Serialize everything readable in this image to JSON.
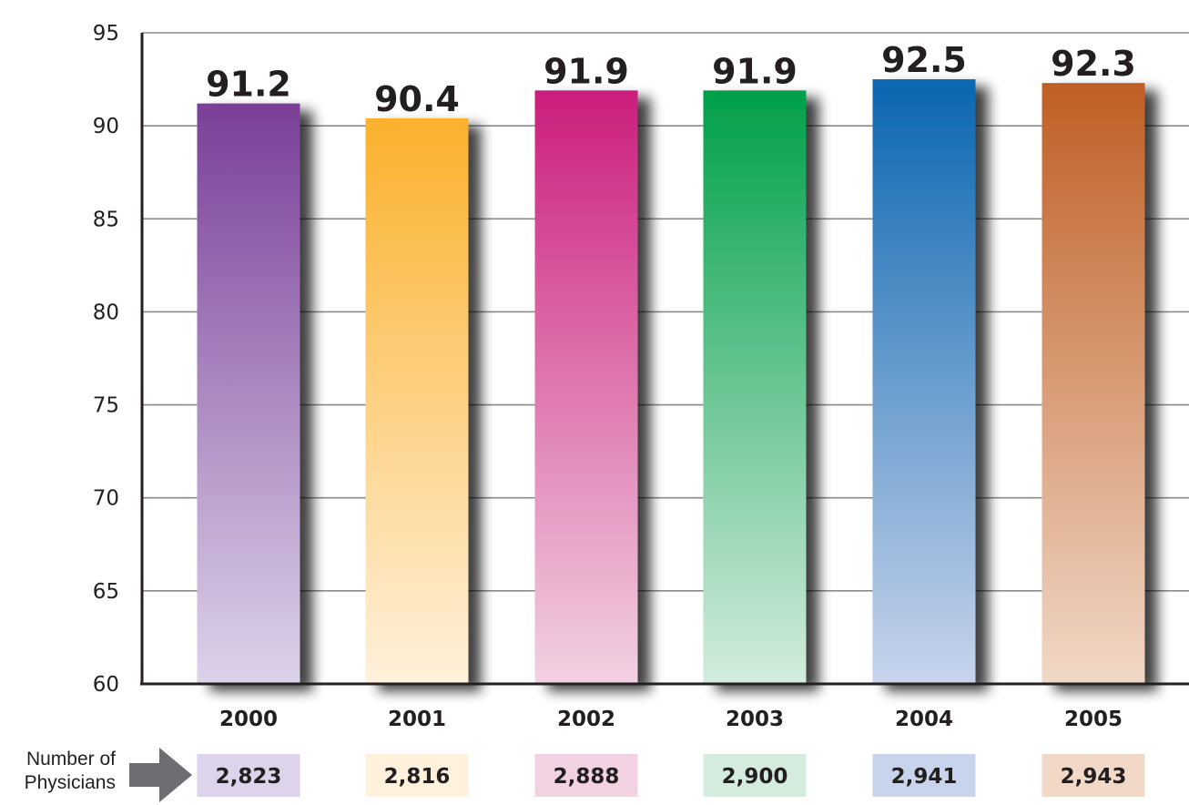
{
  "chart_data": {
    "type": "bar",
    "categories": [
      "2000",
      "2001",
      "2002",
      "2003",
      "2004",
      "2005"
    ],
    "values": [
      91.2,
      90.4,
      91.9,
      91.9,
      92.5,
      92.3
    ],
    "data_labels": [
      "91.2",
      "90.4",
      "91.9",
      "91.9",
      "92.5",
      "92.3"
    ],
    "ylim": [
      60,
      95
    ],
    "yticks": [
      60,
      65,
      70,
      75,
      80,
      85,
      90,
      95
    ],
    "grid": true,
    "title": "",
    "xlabel": "",
    "ylabel": "",
    "bar_colors": [
      {
        "top": "#7a3f98",
        "bottom": "#ddd3ea"
      },
      {
        "top": "#fbb12b",
        "bottom": "#fff1dc"
      },
      {
        "top": "#cb1e7c",
        "bottom": "#f2d2e2"
      },
      {
        "top": "#00a04a",
        "bottom": "#d3ecdd"
      },
      {
        "top": "#0a66b0",
        "bottom": "#c8d4ec"
      },
      {
        "top": "#bf5f25",
        "bottom": "#f1d8c7"
      }
    ]
  },
  "physicians": {
    "label_line1": "Number of",
    "label_line2": "Physicians",
    "arrow_icon": "right-arrow-icon",
    "counts": [
      "2,823",
      "2,816",
      "2,888",
      "2,900",
      "2,941",
      "2,943"
    ],
    "box_colors": [
      "#ddd3ea",
      "#fff1dc",
      "#f2d2e2",
      "#d3ecdd",
      "#c8d4ec",
      "#f1d8c7"
    ]
  }
}
